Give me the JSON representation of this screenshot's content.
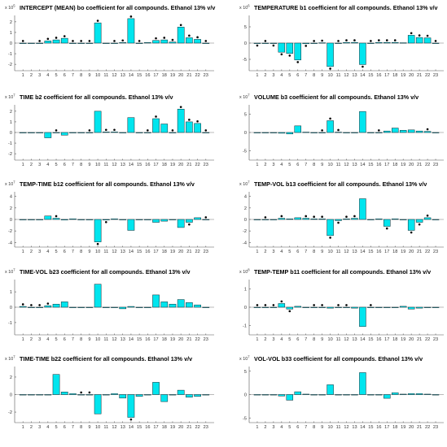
{
  "figure": {
    "bar_color": "#00e5ee",
    "bar_edge": "#0c2a33",
    "marker_color": "#000000"
  },
  "chart_data": [
    {
      "type": "bar",
      "title": "INTERCEPT (MEAN) bo coefficient for all compounds. Ethanol 13% v/v",
      "exponent_base": "x 10",
      "exponent_power": "5",
      "categories": [
        "1",
        "2",
        "3",
        "4",
        "5",
        "6",
        "7",
        "8",
        "9",
        "10",
        "11",
        "12",
        "13",
        "14",
        "15",
        "16",
        "17",
        "18",
        "19",
        "20",
        "21",
        "22",
        "23"
      ],
      "values": [
        0,
        0,
        0,
        0.2,
        0.3,
        0.45,
        0,
        0,
        0,
        1.9,
        0,
        0,
        0.05,
        2.3,
        0,
        0.05,
        0.25,
        0.3,
        0.1,
        1.5,
        0.5,
        0.35,
        0
      ],
      "significant": [
        1,
        3,
        4,
        5,
        6,
        7,
        8,
        9,
        10,
        12,
        13,
        14,
        15,
        17,
        18,
        19,
        20,
        21,
        22,
        23
      ],
      "yticks": [
        -2,
        -1,
        0,
        1,
        2
      ],
      "ylim": [
        -2.6,
        2.6
      ]
    },
    {
      "type": "bar",
      "title": "TEMPERATURE b1 coefficient for all compounds. Ethanol 13% v/v",
      "exponent_base": "x 10",
      "exponent_power": "6",
      "categories": [
        "1",
        "2",
        "3",
        "4",
        "5",
        "6",
        "7",
        "8",
        "9",
        "10",
        "11",
        "12",
        "13",
        "14",
        "15",
        "16",
        "17",
        "18",
        "19",
        "20",
        "21",
        "22",
        "23"
      ],
      "values": [
        -0.1,
        0,
        -0.1,
        -2.8,
        -3.2,
        -5.2,
        -0.2,
        0,
        0.1,
        -7.2,
        0,
        0.2,
        0.2,
        -6.6,
        0,
        0.2,
        0.2,
        0.2,
        0.1,
        2.4,
        1.7,
        1.6,
        0
      ],
      "significant": [
        1,
        2,
        3,
        4,
        5,
        6,
        7,
        8,
        9,
        10,
        11,
        12,
        13,
        14,
        15,
        16,
        17,
        18,
        20,
        21,
        22,
        23
      ],
      "yticks": [
        -5,
        0,
        5
      ],
      "ylim": [
        -8.5,
        8.5
      ]
    },
    {
      "type": "bar",
      "title": "TIME b2 coefficient for all compounds. Ethanol 13% v/v",
      "exponent_base": "x 10",
      "exponent_power": "7",
      "categories": [
        "1",
        "2",
        "3",
        "4",
        "5",
        "6",
        "7",
        "8",
        "9",
        "10",
        "11",
        "12",
        "13",
        "14",
        "15",
        "16",
        "17",
        "18",
        "19",
        "20",
        "21",
        "22",
        "23"
      ],
      "values": [
        0,
        0,
        0,
        -0.5,
        0,
        -0.25,
        0,
        0,
        0,
        2.0,
        0.05,
        0.05,
        0,
        1.4,
        0,
        0,
        1.3,
        0.8,
        0,
        2.2,
        1.0,
        0.85,
        0
      ],
      "significant": [
        5,
        9,
        11,
        12,
        16,
        17,
        19,
        20,
        21,
        22,
        23
      ],
      "yticks": [
        -2,
        -1,
        0,
        1,
        2
      ],
      "ylim": [
        -2.6,
        2.6
      ]
    },
    {
      "type": "bar",
      "title": "VOLUME b3 coefficient for all compounds. Ethanol 13% v/v",
      "exponent_base": "x 10",
      "exponent_power": "7",
      "categories": [
        "1",
        "2",
        "3",
        "4",
        "5",
        "6",
        "7",
        "8",
        "9",
        "10",
        "11",
        "12",
        "13",
        "14",
        "15",
        "16",
        "17",
        "18",
        "19",
        "20",
        "21",
        "22",
        "23"
      ],
      "values": [
        0,
        0,
        0,
        -0.2,
        -0.4,
        1.8,
        0.1,
        0,
        0,
        3.2,
        0.1,
        0,
        0,
        5.7,
        0,
        0,
        0.4,
        1.2,
        0.6,
        0.7,
        0.4,
        0.3,
        0
      ],
      "significant": [
        9,
        10,
        11,
        16,
        22
      ],
      "yticks": [
        -5,
        0,
        5
      ],
      "ylim": [
        -7.5,
        7.5
      ]
    },
    {
      "type": "bar",
      "title": "TEMP-TIME b12 coefficient for all compounds. Ethanol 13% v/v",
      "exponent_base": "x 10",
      "exponent_power": "7",
      "categories": [
        "1",
        "2",
        "3",
        "4",
        "5",
        "6",
        "7",
        "8",
        "9",
        "10",
        "11",
        "12",
        "13",
        "14",
        "15",
        "16",
        "17",
        "18",
        "19",
        "20",
        "21",
        "22",
        "23"
      ],
      "values": [
        0,
        0,
        0,
        0.6,
        0.2,
        -0.1,
        0.1,
        0,
        0,
        -3.9,
        -0.1,
        0.1,
        0,
        -1.9,
        0,
        0,
        -0.5,
        -0.3,
        0,
        -1.4,
        -0.5,
        0.3,
        0
      ],
      "significant": [
        5,
        10,
        11,
        21,
        23
      ],
      "yticks": [
        -4,
        -2,
        0,
        2,
        4
      ],
      "ylim": [
        -4.8,
        4.8
      ]
    },
    {
      "type": "bar",
      "title": "TEMP-VOL b13 coefficient for all compounds. Ethanol 13% v/v",
      "exponent_base": "x 10",
      "exponent_power": "7",
      "categories": [
        "1",
        "2",
        "3",
        "4",
        "5",
        "6",
        "7",
        "8",
        "9",
        "10",
        "11",
        "12",
        "13",
        "14",
        "15",
        "16",
        "17",
        "18",
        "19",
        "20",
        "21",
        "22",
        "23"
      ],
      "values": [
        0,
        0,
        0,
        0.2,
        0.1,
        0.3,
        0.2,
        0.1,
        0.1,
        -2.8,
        -0.2,
        0.1,
        0.2,
        3.6,
        0,
        0.1,
        -1.2,
        0.1,
        0,
        -1.9,
        -0.5,
        0.3,
        0
      ],
      "significant": [
        2,
        4,
        7,
        8,
        9,
        10,
        11,
        12,
        13,
        17,
        20,
        21,
        22
      ],
      "yticks": [
        -4,
        -2,
        0,
        2,
        4
      ],
      "ylim": [
        -4.8,
        4.8
      ]
    },
    {
      "type": "bar",
      "title": "TIME-VOL b23 coefficient for all compounds. Ethanol 13% v/v",
      "exponent_base": "x 10",
      "exponent_power": "7",
      "categories": [
        "1",
        "2",
        "3",
        "4",
        "5",
        "6",
        "7",
        "8",
        "9",
        "10",
        "11",
        "12",
        "13",
        "14",
        "15",
        "16",
        "17",
        "18",
        "19",
        "20",
        "21",
        "22",
        "23"
      ],
      "values": [
        0.05,
        0,
        0,
        0.1,
        0.2,
        0.35,
        0,
        0,
        0,
        1.5,
        0,
        0,
        -0.1,
        0.05,
        0,
        0,
        0.8,
        0.35,
        0.2,
        0.5,
        0.3,
        0.15,
        0
      ],
      "significant": [
        1,
        2,
        3,
        4
      ],
      "yticks": [
        -1,
        0,
        1
      ],
      "ylim": [
        -1.8,
        1.8
      ]
    },
    {
      "type": "bar",
      "title": "TEMP-TEMP b11 coefficient for all compounds. Ethanol 13% v/v",
      "exponent_base": "x 10",
      "exponent_power": "8",
      "categories": [
        "1",
        "2",
        "3",
        "4",
        "5",
        "6",
        "7",
        "8",
        "9",
        "10",
        "11",
        "12",
        "13",
        "14",
        "15",
        "16",
        "17",
        "18",
        "19",
        "20",
        "21",
        "22",
        "23"
      ],
      "values": [
        0,
        0,
        0,
        0.2,
        -0.1,
        0.05,
        0,
        0,
        0,
        -0.05,
        0,
        0,
        -0.05,
        -1.05,
        0,
        0,
        0,
        0,
        0.05,
        -0.1,
        -0.05,
        0,
        0
      ],
      "significant": [
        1,
        2,
        3,
        4,
        5,
        8,
        9,
        11,
        12,
        15
      ],
      "yticks": [
        -1,
        0,
        1
      ],
      "ylim": [
        -1.5,
        1.5
      ]
    },
    {
      "type": "bar",
      "title": "TIME-TIME b22 coefficient for all compounds. Ethanol 13% v/v",
      "exponent_base": "x 10",
      "exponent_power": "7",
      "categories": [
        "1",
        "2",
        "3",
        "4",
        "5",
        "6",
        "7",
        "8",
        "9",
        "10",
        "11",
        "12",
        "13",
        "14",
        "15",
        "16",
        "17",
        "18",
        "19",
        "20",
        "21",
        "22",
        "23"
      ],
      "values": [
        0,
        0,
        0,
        0,
        2.3,
        0.3,
        0.1,
        0,
        0,
        -2.2,
        0,
        0.1,
        -0.4,
        -2.6,
        -0.2,
        0,
        1.4,
        -0.8,
        0,
        0.5,
        -0.3,
        -0.2,
        0
      ],
      "significant": [
        8,
        9,
        14
      ],
      "yticks": [
        -2,
        0,
        2
      ],
      "ylim": [
        -3.2,
        3.2
      ]
    },
    {
      "type": "bar",
      "title": "VOL-VOL b33 coefficient for all compounds. Ethanol 13% v/v",
      "exponent_base": "x 10",
      "exponent_power": "7",
      "categories": [
        "1",
        "2",
        "3",
        "4",
        "5",
        "6",
        "7",
        "8",
        "9",
        "10",
        "11",
        "12",
        "13",
        "14",
        "15",
        "16",
        "17",
        "18",
        "19",
        "20",
        "21",
        "22",
        "23"
      ],
      "values": [
        0,
        0,
        0,
        -0.3,
        -1.2,
        0.6,
        0.1,
        0,
        0,
        2.1,
        0,
        0,
        0,
        4.7,
        0,
        0,
        -0.8,
        0.4,
        0.1,
        0.2,
        0.2,
        0.1,
        0
      ],
      "significant": [],
      "yticks": [
        -5,
        0,
        5
      ],
      "ylim": [
        -6.0,
        6.0
      ]
    }
  ]
}
